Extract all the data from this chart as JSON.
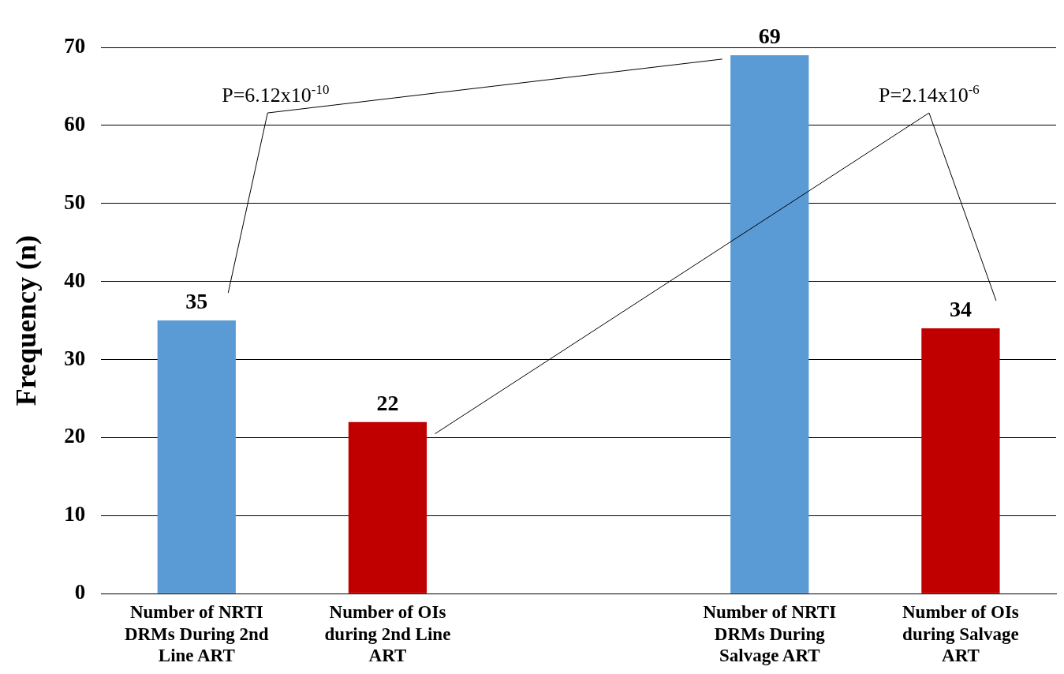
{
  "chart_data": {
    "type": "bar",
    "ylabel": "Frequency (n)",
    "categories": [
      "Number of NRTI DRMs During 2nd Line ART",
      "Number of OIs during 2nd Line ART",
      null,
      "Number of NRTI DRMs During Salvage ART",
      "Number of OIs during Salvage ART"
    ],
    "values": [
      35,
      22,
      null,
      69,
      34
    ],
    "colors": [
      "#5b9bd5",
      "#c00000",
      "#5b9bd5",
      "#5b9bd5",
      "#c00000"
    ],
    "ylim": [
      0,
      70
    ],
    "yticks": [
      0,
      10,
      20,
      30,
      40,
      50,
      60,
      70
    ],
    "grid": "y",
    "data_labels": true,
    "legend": false,
    "annotations": [
      "P=6.12x10$^{-10}$",
      "P=2.14x10$^{-6}$"
    ]
  }
}
